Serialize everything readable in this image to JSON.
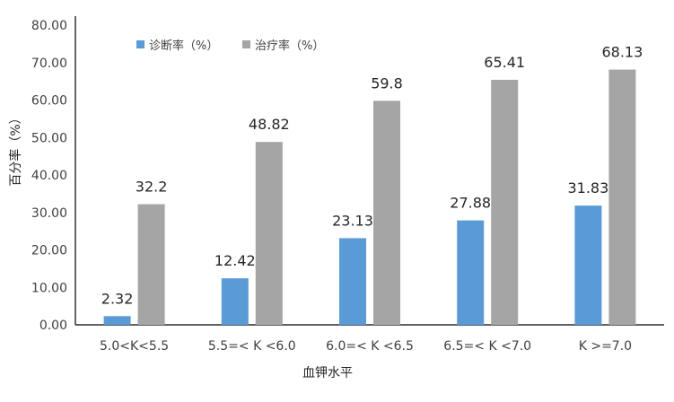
{
  "chart_data": {
    "type": "bar",
    "title": "",
    "xlabel": "血钾水平",
    "ylabel": "百分率（%）",
    "ylim": [
      0,
      80
    ],
    "yticks": [
      "0.00",
      "10.00",
      "20.00",
      "30.00",
      "40.00",
      "50.00",
      "60.00",
      "70.00",
      "80.00"
    ],
    "grid": false,
    "legend_position": "top-left",
    "categories": [
      "5.0<K<5.5",
      "5.5=< K <6.0",
      "6.0=< K <6.5",
      "6.5=< K <7.0",
      "K >=7.0"
    ],
    "series": [
      {
        "name": "诊断率（%）",
        "color": "#5B9BD5",
        "values": [
          2.32,
          12.42,
          23.13,
          27.88,
          31.83
        ],
        "labels": [
          "2.32",
          "12.42",
          "23.13",
          "27.88",
          "31.83"
        ]
      },
      {
        "name": "治疗率（%）",
        "color": "#A5A5A5",
        "values": [
          32.2,
          48.82,
          59.8,
          65.41,
          68.13
        ],
        "labels": [
          "32.2",
          "48.82",
          "59.8",
          "65.41",
          "68.13"
        ]
      }
    ]
  }
}
